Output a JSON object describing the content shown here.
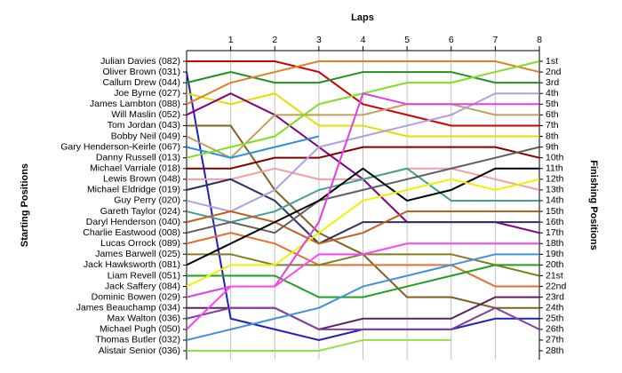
{
  "chart_data": {
    "type": "line",
    "title": "Laps",
    "y_label": "Starting Positions",
    "y2_label": "Finishing Positions",
    "x": [
      0,
      1,
      2,
      3,
      4,
      5,
      6,
      7,
      8
    ],
    "xlim": [
      0,
      8
    ],
    "xticks": [
      1,
      2,
      3,
      4,
      5,
      6,
      7,
      8
    ],
    "ylim": [
      1,
      28
    ],
    "y_inverted": true,
    "grid": true,
    "y2ticks": [
      {
        "value": 1,
        "label": "1st"
      },
      {
        "value": 2,
        "label": "2nd"
      },
      {
        "value": 3,
        "label": "3rd"
      },
      {
        "value": 4,
        "label": "4th"
      },
      {
        "value": 5,
        "label": "5th"
      },
      {
        "value": 6,
        "label": "6th"
      },
      {
        "value": 7,
        "label": "7th"
      },
      {
        "value": 8,
        "label": "8th"
      },
      {
        "value": 9,
        "label": "9th"
      },
      {
        "value": 10,
        "label": "10th"
      },
      {
        "value": 11,
        "label": "11th"
      },
      {
        "value": 12,
        "label": "12th"
      },
      {
        "value": 13,
        "label": "13th"
      },
      {
        "value": 14,
        "label": "14th"
      },
      {
        "value": 15,
        "label": "15th"
      },
      {
        "value": 16,
        "label": "16th"
      },
      {
        "value": 17,
        "label": "17th"
      },
      {
        "value": 18,
        "label": "18th"
      },
      {
        "value": 19,
        "label": "19th"
      },
      {
        "value": 20,
        "label": "20th"
      },
      {
        "value": 21,
        "label": "21st"
      },
      {
        "value": 22,
        "label": "22nd"
      },
      {
        "value": 23,
        "label": "23rd"
      },
      {
        "value": 24,
        "label": "24th"
      },
      {
        "value": 25,
        "label": "25th"
      },
      {
        "value": 26,
        "label": "26th"
      },
      {
        "value": 27,
        "label": "27th"
      },
      {
        "value": 28,
        "label": "28th"
      }
    ],
    "series": [
      {
        "name": "Julian Davies (082)",
        "color": "#d00000",
        "values": [
          1,
          1,
          1,
          2,
          5,
          6,
          7,
          7,
          7
        ]
      },
      {
        "name": "Oliver Brown (031)",
        "color": "#2020c0",
        "values": [
          2,
          25,
          26,
          27,
          26,
          26,
          26,
          25,
          25
        ]
      },
      {
        "name": "Callum Drew (044)",
        "color": "#209020",
        "values": [
          3,
          2,
          3,
          3,
          2,
          2,
          2,
          3,
          3
        ]
      },
      {
        "name": "Joe Byrne (027)",
        "color": "#e0e000",
        "values": [
          4,
          5,
          4,
          7,
          7,
          8,
          8,
          8,
          8
        ]
      },
      {
        "name": "James Lambton (088)",
        "color": "#e08020",
        "values": [
          5,
          3,
          2,
          1,
          1,
          1,
          1,
          1,
          2
        ]
      },
      {
        "name": "Will Maslin (052)",
        "color": "#800080",
        "values": [
          6,
          4,
          6,
          9,
          12,
          16,
          16,
          16,
          17
        ]
      },
      {
        "name": "Tom Jordan (043)",
        "color": "#806020",
        "values": [
          7,
          7,
          13,
          17,
          19,
          23,
          23,
          24,
          24
        ]
      },
      {
        "name": "Bobby Neil (049)",
        "color": "#c0a060",
        "values": [
          8,
          10,
          6,
          6,
          6,
          5,
          5,
          6,
          6
        ]
      },
      {
        "name": "Gary Henderson-Keirle (067)",
        "color": "#3090e0",
        "values": [
          9,
          10,
          9,
          8,
          null,
          null,
          null,
          null,
          null
        ]
      },
      {
        "name": "Danny Russell (013)",
        "color": "#80e020",
        "values": [
          10,
          9,
          8,
          5,
          4,
          3,
          3,
          2,
          1
        ]
      },
      {
        "name": "Michael Varriale (018)",
        "color": "#800000",
        "values": [
          11,
          11,
          10,
          10,
          9,
          9,
          9,
          9,
          10
        ]
      },
      {
        "name": "Lewis Brown (048)",
        "color": "#f0a0a0",
        "values": [
          12,
          12,
          11,
          12,
          12,
          11,
          11,
          12,
          13
        ]
      },
      {
        "name": "Michael Eldridge (019)",
        "color": "#303060",
        "values": [
          13,
          12,
          14,
          18,
          16,
          16,
          16,
          16,
          16
        ]
      },
      {
        "name": "Guy Perry (020)",
        "color": "#b0a0e0",
        "values": [
          14,
          15,
          13,
          9,
          8,
          7,
          6,
          4,
          4
        ]
      },
      {
        "name": "Gareth Taylor (024)",
        "color": "#40a090",
        "values": [
          15,
          16,
          15,
          13,
          12,
          11,
          14,
          14,
          14
        ]
      },
      {
        "name": "Daryl Henderson (040)",
        "color": "#c06020",
        "values": [
          16,
          15,
          16,
          18,
          17,
          15,
          15,
          15,
          15
        ]
      },
      {
        "name": "Charlie Eastwood (008)",
        "color": "#606060",
        "values": [
          17,
          16,
          17,
          14,
          13,
          12,
          11,
          10,
          9
        ]
      },
      {
        "name": "Lucas Orrock (089)",
        "color": "#e07030",
        "values": [
          18,
          17,
          18,
          20,
          20,
          20,
          20,
          22,
          22
        ]
      },
      {
        "name": "James Barwell (025)",
        "color": "#808020",
        "values": [
          19,
          19,
          20,
          20,
          19,
          19,
          19,
          20,
          21
        ]
      },
      {
        "name": "Jack Hawksworth (081)",
        "color": "#000000",
        "values": [
          20,
          18,
          16,
          14,
          11,
          14,
          13,
          11,
          11
        ]
      },
      {
        "name": "Liam Revell (051)",
        "color": "#20a020",
        "values": [
          21,
          21,
          21,
          23,
          23,
          22,
          21,
          20,
          20
        ]
      },
      {
        "name": "Jack Saffery (084)",
        "color": "#f0f000",
        "values": [
          22,
          20,
          20,
          17,
          14,
          13,
          12,
          13,
          12
        ]
      },
      {
        "name": "Dominic Bowen (029)",
        "color": "#e040e0",
        "values": [
          23,
          22,
          22,
          16,
          4,
          5,
          5,
          5,
          5
        ]
      },
      {
        "name": "James Beauchamp (034)",
        "color": "#602060",
        "values": [
          24,
          24,
          24,
          26,
          25,
          25,
          25,
          23,
          23
        ]
      },
      {
        "name": "Max Walton (036)",
        "color": "#8040a0",
        "values": [
          25,
          24,
          24,
          26,
          26,
          26,
          26,
          24,
          26
        ]
      },
      {
        "name": "Michael Pugh (050)",
        "color": "#ff40ff",
        "values": [
          26,
          22,
          22,
          19,
          19,
          18,
          18,
          18,
          18
        ]
      },
      {
        "name": "Thomas Butler (032)",
        "color": "#4090e0",
        "values": [
          27,
          26,
          25,
          24,
          22,
          21,
          20,
          19,
          19
        ]
      },
      {
        "name": "Alistair Senior (036)",
        "color": "#90e040",
        "values": [
          28,
          28,
          28,
          28,
          27,
          27,
          27,
          null,
          null
        ]
      }
    ]
  }
}
